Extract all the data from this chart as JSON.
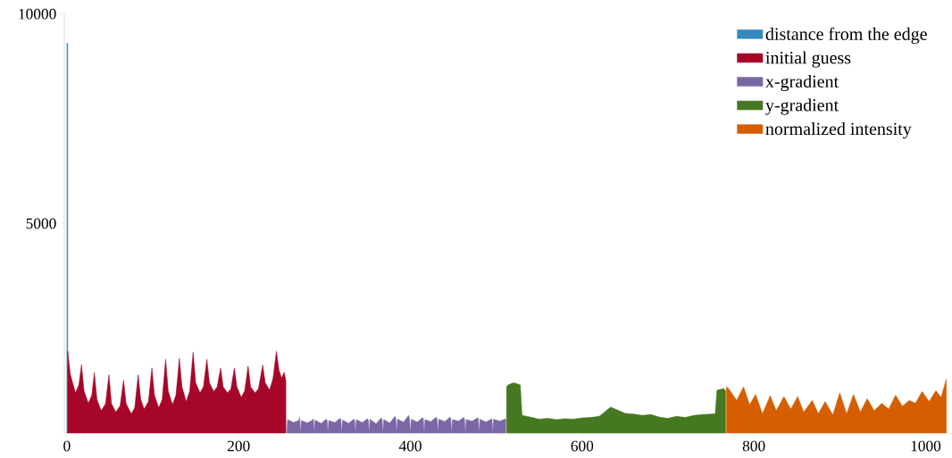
{
  "chart_data": {
    "type": "area",
    "xlim": [
      -3,
      1030
    ],
    "ylim": [
      0,
      10000
    ],
    "xticks": [
      0,
      200,
      400,
      600,
      800,
      1000
    ],
    "yticks": [
      5000,
      10000
    ],
    "legend": "top right",
    "grid": false,
    "series": [
      {
        "name": "distance from the edge",
        "color": "#348abd",
        "x": [
          0,
          1
        ],
        "values": [
          9300,
          9300
        ]
      },
      {
        "name": "initial guess",
        "color": "#a60628",
        "x": [
          1,
          4,
          10,
          14,
          17,
          20,
          25,
          29,
          32,
          35,
          40,
          45,
          49,
          52,
          57,
          62,
          66,
          69,
          75,
          79,
          83,
          86,
          90,
          95,
          99,
          102,
          107,
          111,
          115,
          118,
          123,
          127,
          131,
          134,
          139,
          143,
          147,
          150,
          155,
          159,
          163,
          166,
          171,
          175,
          179,
          182,
          187,
          191,
          195,
          198,
          203,
          207,
          211,
          214,
          219,
          223,
          228,
          231,
          236,
          240,
          244,
          247,
          250,
          253,
          255
        ],
        "values": [
          1950,
          1400,
          960,
          1150,
          1630,
          1000,
          710,
          900,
          1440,
          800,
          530,
          700,
          1390,
          700,
          500,
          650,
          1260,
          700,
          460,
          600,
          1390,
          800,
          570,
          750,
          1550,
          900,
          600,
          800,
          1760,
          1000,
          680,
          900,
          1780,
          1100,
          750,
          1000,
          1930,
          1200,
          960,
          1100,
          1760,
          1200,
          990,
          1100,
          1550,
          1100,
          960,
          1050,
          1550,
          1100,
          850,
          1000,
          1600,
          1100,
          960,
          1050,
          1620,
          1200,
          1030,
          1300,
          1950,
          1500,
          1310,
          1450,
          1240
        ]
      },
      {
        "name": "x-gradient",
        "color": "#7a68a6",
        "x": [
          256,
          257,
          264,
          270,
          271,
          272,
          273,
          280,
          286,
          287,
          288,
          289,
          296,
          302,
          303,
          304,
          305,
          312,
          318,
          319,
          320,
          321,
          328,
          334,
          335,
          336,
          337,
          344,
          350,
          351,
          352,
          353,
          360,
          366,
          367,
          368,
          369,
          376,
          382,
          383,
          384,
          385,
          392,
          398,
          399,
          400,
          401,
          408,
          414,
          415,
          416,
          417,
          424,
          430,
          431,
          432,
          433,
          440,
          446,
          447,
          448,
          449,
          456,
          462,
          463,
          464,
          465,
          472,
          478,
          479,
          480,
          481,
          488,
          494,
          495,
          496,
          497,
          504,
          510,
          511
        ],
        "values": [
          0,
          320,
          250,
          300,
          380,
          0,
          300,
          240,
          310,
          340,
          0,
          310,
          230,
          330,
          300,
          0,
          300,
          250,
          350,
          320,
          0,
          310,
          230,
          330,
          310,
          0,
          320,
          250,
          340,
          300,
          0,
          330,
          220,
          360,
          330,
          0,
          320,
          240,
          400,
          350,
          0,
          330,
          260,
          420,
          330,
          0,
          330,
          260,
          360,
          350,
          0,
          320,
          270,
          380,
          330,
          0,
          330,
          270,
          380,
          340,
          0,
          320,
          280,
          370,
          340,
          0,
          320,
          280,
          360,
          350,
          0,
          330,
          260,
          330,
          330,
          0,
          330,
          280,
          330,
          340
        ]
      },
      {
        "name": "y-gradient",
        "color": "#467821",
        "x": [
          512,
          514,
          520,
          528,
          530,
          540,
          550,
          560,
          570,
          580,
          590,
          600,
          610,
          620,
          625,
          633,
          640,
          650,
          660,
          670,
          680,
          690,
          700,
          710,
          720,
          730,
          740,
          750,
          755,
          757,
          765,
          767
        ],
        "values": [
          1100,
          1150,
          1200,
          1150,
          420,
          380,
          330,
          350,
          320,
          340,
          330,
          360,
          370,
          400,
          480,
          620,
          560,
          470,
          450,
          420,
          440,
          380,
          350,
          400,
          370,
          420,
          440,
          450,
          460,
          1020,
          1060,
          1000
        ]
      },
      {
        "name": "normalized intensity",
        "color": "#d55e00",
        "x": [
          768,
          771,
          780,
          788,
          795,
          802,
          810,
          819,
          826,
          835,
          843,
          851,
          858,
          868,
          875,
          883,
          892,
          900,
          908,
          916,
          924,
          932,
          940,
          949,
          957,
          965,
          973,
          981,
          988,
          996,
          1004,
          1012,
          1018,
          1024
        ],
        "values": [
          1100,
          1050,
          780,
          1100,
          675,
          920,
          460,
          890,
          530,
          870,
          570,
          870,
          500,
          780,
          460,
          750,
          430,
          960,
          460,
          920,
          500,
          820,
          530,
          710,
          570,
          900,
          640,
          780,
          710,
          990,
          750,
          1010,
          850,
          1280
        ]
      }
    ]
  }
}
